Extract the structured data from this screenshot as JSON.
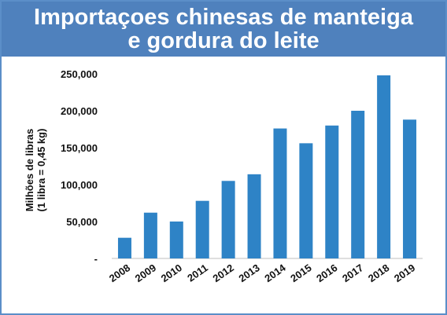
{
  "colors": {
    "title_background": "#4f81bd",
    "title_text": "#ffffff",
    "bar": "#2e83c6",
    "frame": "#5b8ec8"
  },
  "title_lines": [
    "Importaçoes chinesas de manteiga",
    "e gordura do leite"
  ],
  "chart_data": {
    "type": "bar",
    "title": "Importaçoes chinesas de manteiga e gordura do leite",
    "ylabel_lines": [
      "Milhões de libras",
      "(1 libra = 0,45 kg)"
    ],
    "xlabel": "",
    "categories": [
      "2008",
      "2009",
      "2010",
      "2011",
      "2012",
      "2013",
      "2014",
      "2015",
      "2016",
      "2017",
      "2018",
      "2019"
    ],
    "values": [
      28000,
      62000,
      50000,
      78000,
      105000,
      114000,
      176000,
      156000,
      180000,
      200000,
      248000,
      188000
    ],
    "ylim": [
      0,
      250000
    ],
    "yticks": [
      0,
      50000,
      100000,
      150000,
      200000,
      250000
    ],
    "ytick_labels": [
      "-",
      "50,000",
      "100,000",
      "150,000",
      "200,000",
      "250,000"
    ],
    "grid": false,
    "legend": "none"
  }
}
